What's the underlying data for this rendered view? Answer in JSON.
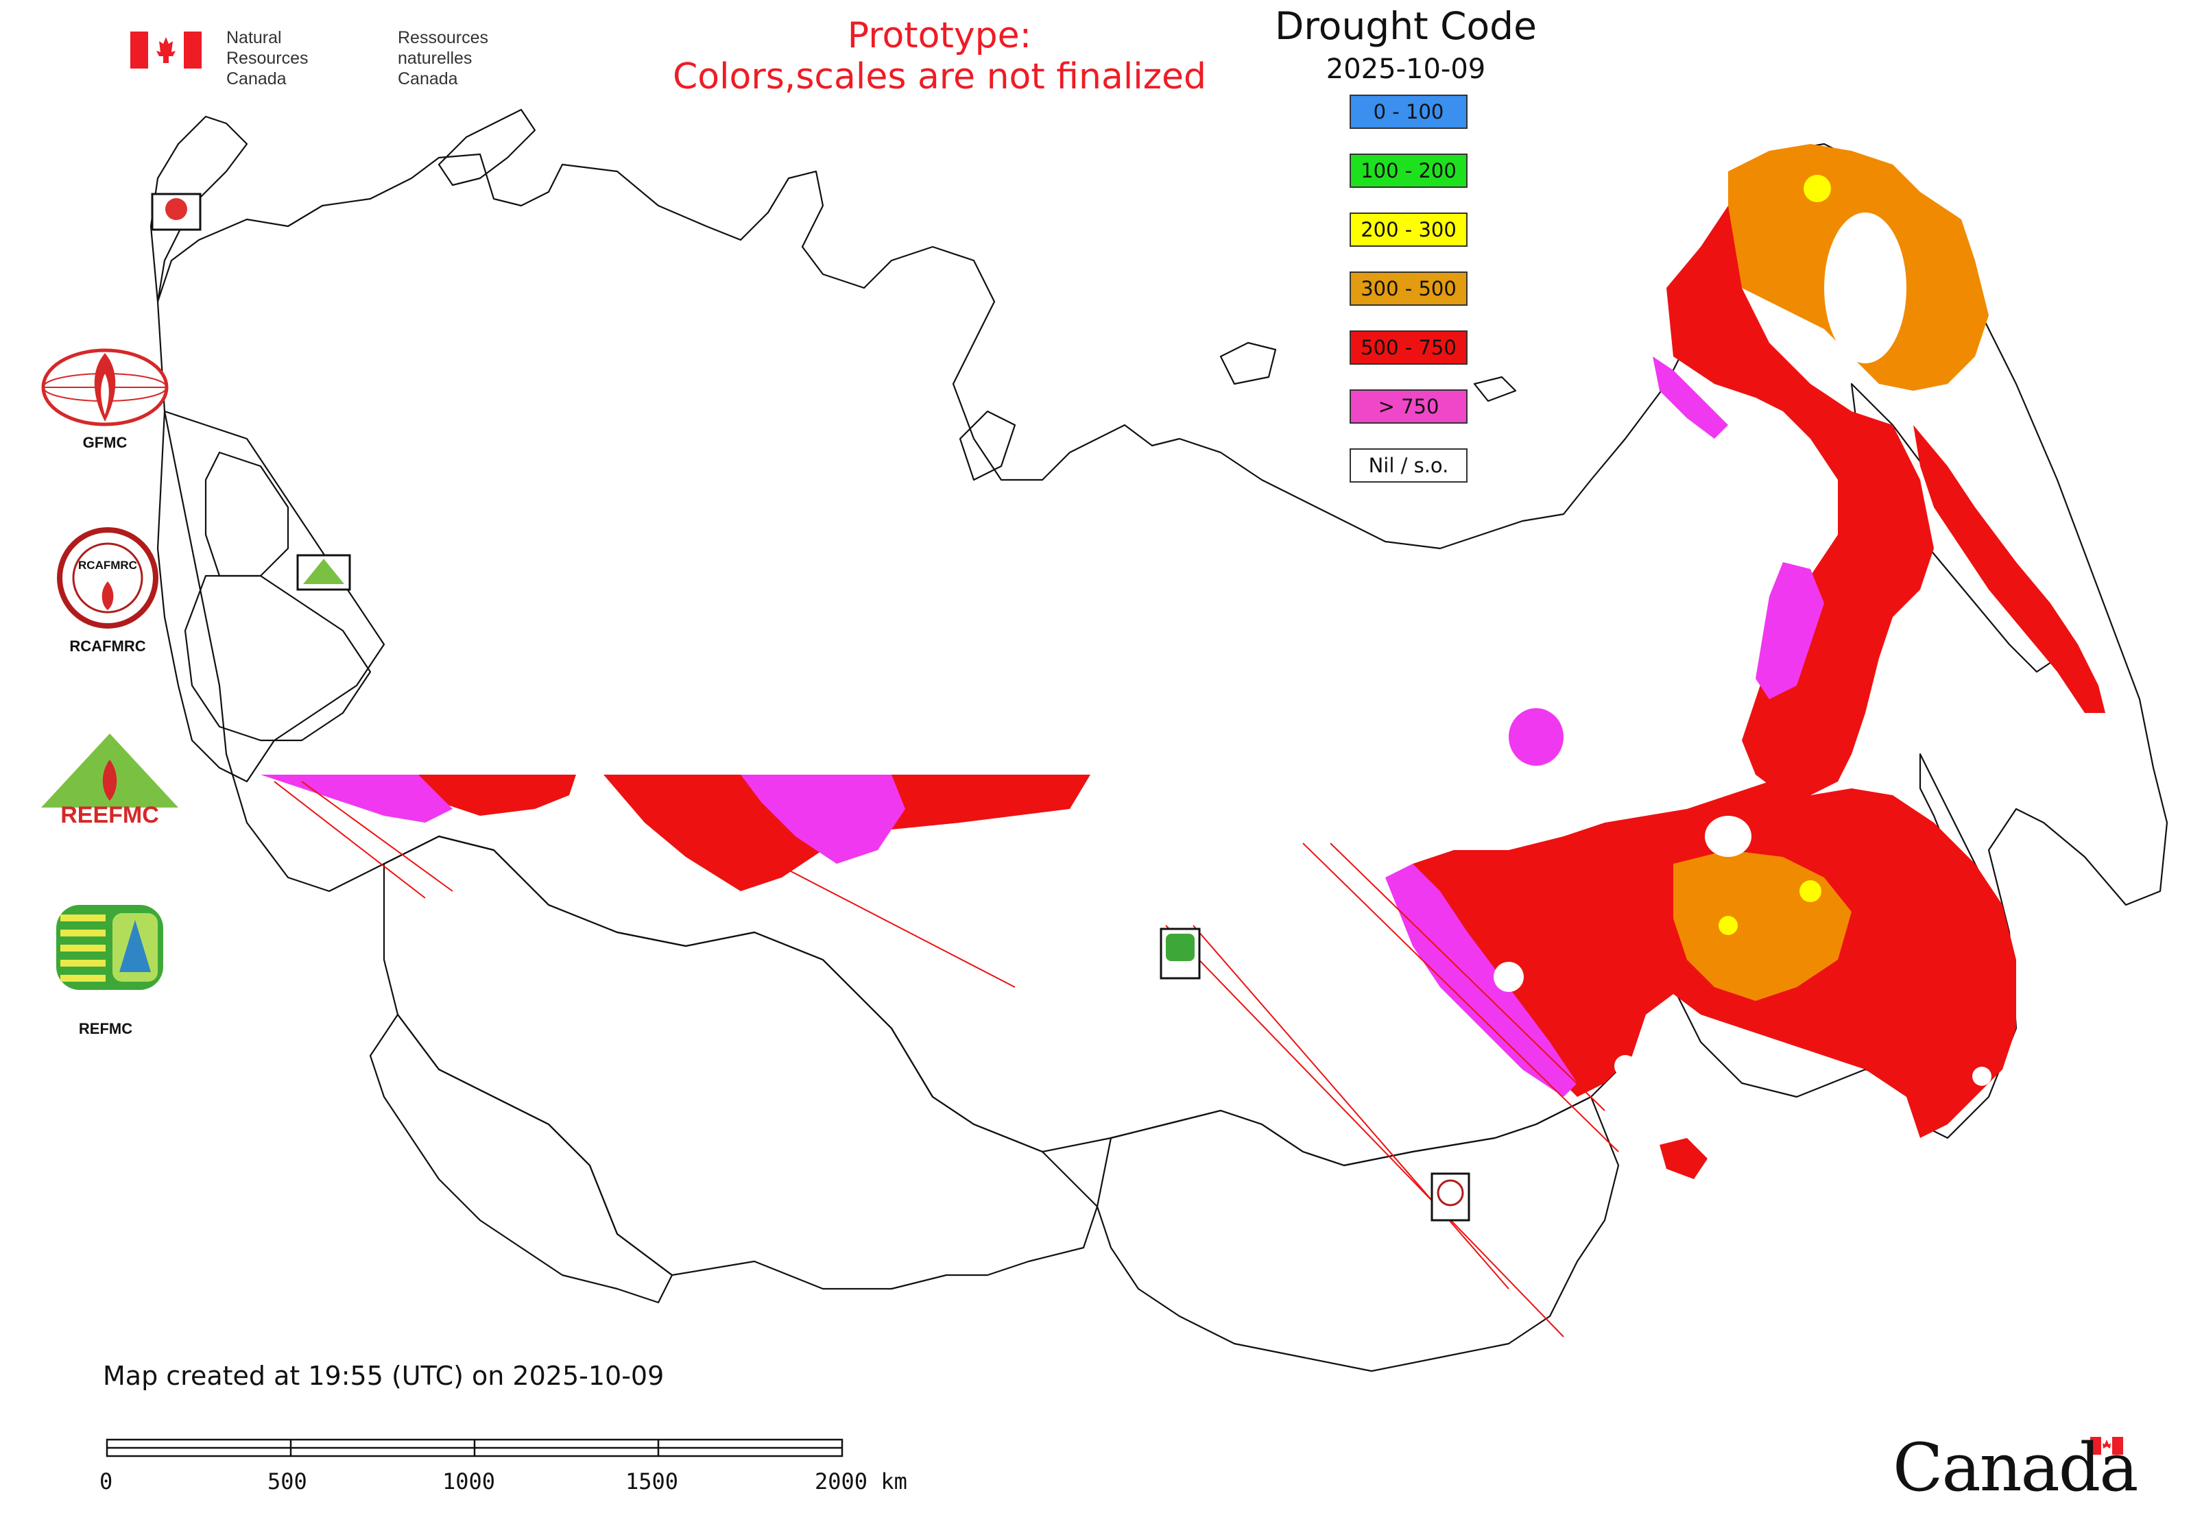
{
  "header": {
    "org_en": "Natural Resources\nCanada",
    "org_fr": "Ressources naturelles\nCanada",
    "prototype_notice": "Prototype:\nColors,scales are not finalized"
  },
  "legend": {
    "title": "Drought Code",
    "date": "2025-10-09",
    "classes": [
      {
        "label": "0 - 100",
        "color": "#3a8fef"
      },
      {
        "label": "100 - 200",
        "color": "#1ee11e"
      },
      {
        "label": "200 - 300",
        "color": "#ffff00"
      },
      {
        "label": "300 - 500",
        "color": "#e39b0f"
      },
      {
        "label": "500 - 750",
        "color": "#ee1111"
      },
      {
        "label": "> 750",
        "color": "#f047c8"
      },
      {
        "label": "Nil / s.o.",
        "color": "#ffffff"
      }
    ]
  },
  "side_logos": [
    {
      "label": "GFMC",
      "icon": "gfmc-logo"
    },
    {
      "label": "RCAFMRC",
      "icon": "rcafmrc-logo"
    },
    {
      "label": "",
      "icon": "reefmc-logo",
      "logo_text": "REEFMC"
    },
    {
      "label": "REFMC",
      "icon": "refmc-logo"
    }
  ],
  "footer": {
    "created_text": "Map created at 19:55 (UTC) on 2025-10-09",
    "scale_labels": [
      "0",
      "500",
      "1000",
      "1500",
      "2000 km"
    ],
    "wordmark": "Canada"
  },
  "colors": {
    "title_red": "#ee1c25",
    "dc_red": "#ee1111",
    "dc_orange": "#f08a00",
    "dc_magenta": "#f038f0",
    "dc_yellow": "#ffff00"
  }
}
